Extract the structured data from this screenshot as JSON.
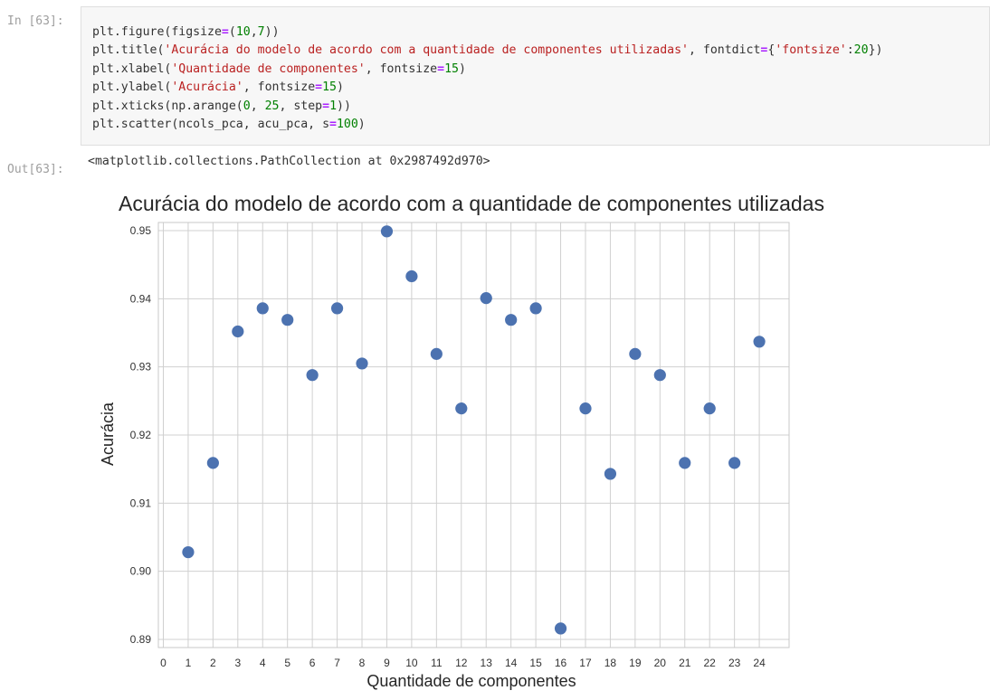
{
  "cell": {
    "in_prompt": "In [63]:",
    "out_prompt": "Out[63]:",
    "code_lines": [
      [
        {
          "t": "plt.figure(figsize",
          "c": "kw"
        },
        {
          "t": "=",
          "c": "op"
        },
        {
          "t": "(",
          "c": "kw"
        },
        {
          "t": "10",
          "c": "num"
        },
        {
          "t": ",",
          "c": "kw"
        },
        {
          "t": "7",
          "c": "num"
        },
        {
          "t": "))",
          "c": "kw"
        }
      ],
      [
        {
          "t": "plt.title(",
          "c": "kw"
        },
        {
          "t": "'Acurácia do modelo de acordo com a quantidade de componentes utilizadas'",
          "c": "str"
        },
        {
          "t": ", fontdict",
          "c": "kw"
        },
        {
          "t": "=",
          "c": "op"
        },
        {
          "t": "{",
          "c": "kw"
        },
        {
          "t": "'fontsize'",
          "c": "str"
        },
        {
          "t": ":",
          "c": "kw"
        },
        {
          "t": "20",
          "c": "num"
        },
        {
          "t": "})",
          "c": "kw"
        }
      ],
      [
        {
          "t": "plt.xlabel(",
          "c": "kw"
        },
        {
          "t": "'Quantidade de componentes'",
          "c": "str"
        },
        {
          "t": ", fontsize",
          "c": "kw"
        },
        {
          "t": "=",
          "c": "op"
        },
        {
          "t": "15",
          "c": "num"
        },
        {
          "t": ")",
          "c": "kw"
        }
      ],
      [
        {
          "t": "plt.ylabel(",
          "c": "kw"
        },
        {
          "t": "'Acurácia'",
          "c": "str"
        },
        {
          "t": ", fontsize",
          "c": "kw"
        },
        {
          "t": "=",
          "c": "op"
        },
        {
          "t": "15",
          "c": "num"
        },
        {
          "t": ")",
          "c": "kw"
        }
      ],
      [
        {
          "t": "plt.xticks(np.arange(",
          "c": "kw"
        },
        {
          "t": "0",
          "c": "num"
        },
        {
          "t": ", ",
          "c": "kw"
        },
        {
          "t": "25",
          "c": "num"
        },
        {
          "t": ", step",
          "c": "kw"
        },
        {
          "t": "=",
          "c": "op"
        },
        {
          "t": "1",
          "c": "num"
        },
        {
          "t": "))",
          "c": "kw"
        }
      ],
      [
        {
          "t": "plt.scatter(ncols_pca, acu_pca, s",
          "c": "kw"
        },
        {
          "t": "=",
          "c": "op"
        },
        {
          "t": "100",
          "c": "num"
        },
        {
          "t": ")",
          "c": "kw"
        }
      ]
    ],
    "output_text": "<matplotlib.collections.PathCollection at 0x2987492d970>"
  },
  "colors": {
    "point": "#4c72b0",
    "grid": "#d0d0d0",
    "spine": "#c8c8c8"
  },
  "chart_data": {
    "type": "scatter",
    "title": "Acurácia do modelo de acordo com a quantidade de componentes utilizadas",
    "xlabel": "Quantidade de componentes",
    "ylabel": "Acurácia",
    "xticks": [
      0,
      1,
      2,
      3,
      4,
      5,
      6,
      7,
      8,
      9,
      10,
      11,
      12,
      13,
      14,
      15,
      16,
      17,
      18,
      19,
      20,
      21,
      22,
      23,
      24
    ],
    "yticks": [
      0.89,
      0.9,
      0.91,
      0.92,
      0.93,
      0.94,
      0.95
    ],
    "ytick_labels": [
      "0.89",
      "0.90",
      "0.91",
      "0.92",
      "0.93",
      "0.94",
      "0.95"
    ],
    "xlim": [
      -0.2,
      25.2
    ],
    "ylim": [
      0.8888,
      0.9512
    ],
    "grid": true,
    "x": [
      1,
      2,
      3,
      4,
      5,
      6,
      7,
      8,
      9,
      10,
      11,
      12,
      13,
      14,
      15,
      16,
      17,
      18,
      19,
      20,
      21,
      22,
      23,
      24
    ],
    "y": [
      0.9028,
      0.9159,
      0.9352,
      0.9386,
      0.9369,
      0.9288,
      0.9386,
      0.9305,
      0.9499,
      0.9433,
      0.9319,
      0.9239,
      0.9401,
      0.9369,
      0.9386,
      0.8916,
      0.9239,
      0.9143,
      0.9319,
      0.9288,
      0.9159,
      0.9239,
      0.9159,
      0.9337
    ]
  }
}
